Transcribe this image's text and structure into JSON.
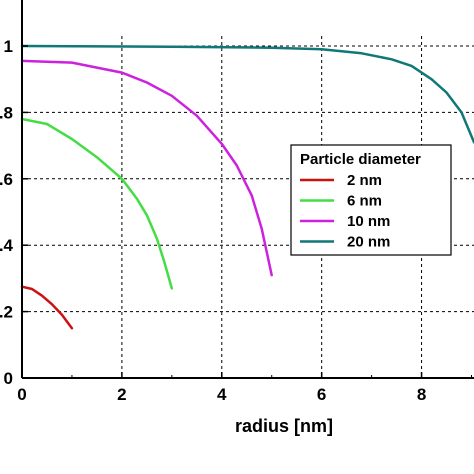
{
  "chart_data": {
    "type": "line",
    "title": "",
    "xlabel": "radius [nm]",
    "ylabel": "",
    "xlim": [
      0,
      9.05
    ],
    "ylim": [
      0,
      1.0
    ],
    "x_ticks": [
      0,
      2,
      4,
      6,
      8
    ],
    "x_tick_labels": [
      "0",
      "2",
      "4",
      "6",
      "8"
    ],
    "y_ticks": [
      0,
      0.2,
      0.4,
      0.6,
      0.8,
      1.0
    ],
    "y_tick_labels": [
      "0",
      ".2",
      ".4",
      ".6",
      ".8",
      "1"
    ],
    "grid": true,
    "legend": {
      "title": "Particle diameter",
      "placement": "right"
    },
    "series": [
      {
        "name": "2 nm",
        "color": "#cc1111",
        "x": [
          0,
          0.2,
          0.4,
          0.6,
          0.8,
          1.0
        ],
        "y": [
          0.275,
          0.268,
          0.248,
          0.222,
          0.19,
          0.15
        ]
      },
      {
        "name": "6 nm",
        "color": "#44dd44",
        "x": [
          0,
          0.5,
          1.0,
          1.5,
          2.0,
          2.3,
          2.5,
          2.7,
          2.85,
          3.0
        ],
        "y": [
          0.78,
          0.765,
          0.72,
          0.665,
          0.6,
          0.54,
          0.49,
          0.42,
          0.35,
          0.27
        ]
      },
      {
        "name": "10 nm",
        "color": "#cc22dd",
        "x": [
          0,
          1.0,
          2.0,
          2.5,
          3.0,
          3.5,
          4.0,
          4.3,
          4.6,
          4.8,
          5.0
        ],
        "y": [
          0.955,
          0.95,
          0.92,
          0.89,
          0.85,
          0.79,
          0.705,
          0.64,
          0.55,
          0.45,
          0.31
        ]
      },
      {
        "name": "20 nm",
        "color": "#117777",
        "x": [
          0,
          3.0,
          5.0,
          6.0,
          6.8,
          7.4,
          7.8,
          8.2,
          8.5,
          8.8,
          9.05
        ],
        "y": [
          1.0,
          0.998,
          0.995,
          0.99,
          0.978,
          0.96,
          0.94,
          0.9,
          0.86,
          0.8,
          0.71
        ]
      }
    ]
  }
}
